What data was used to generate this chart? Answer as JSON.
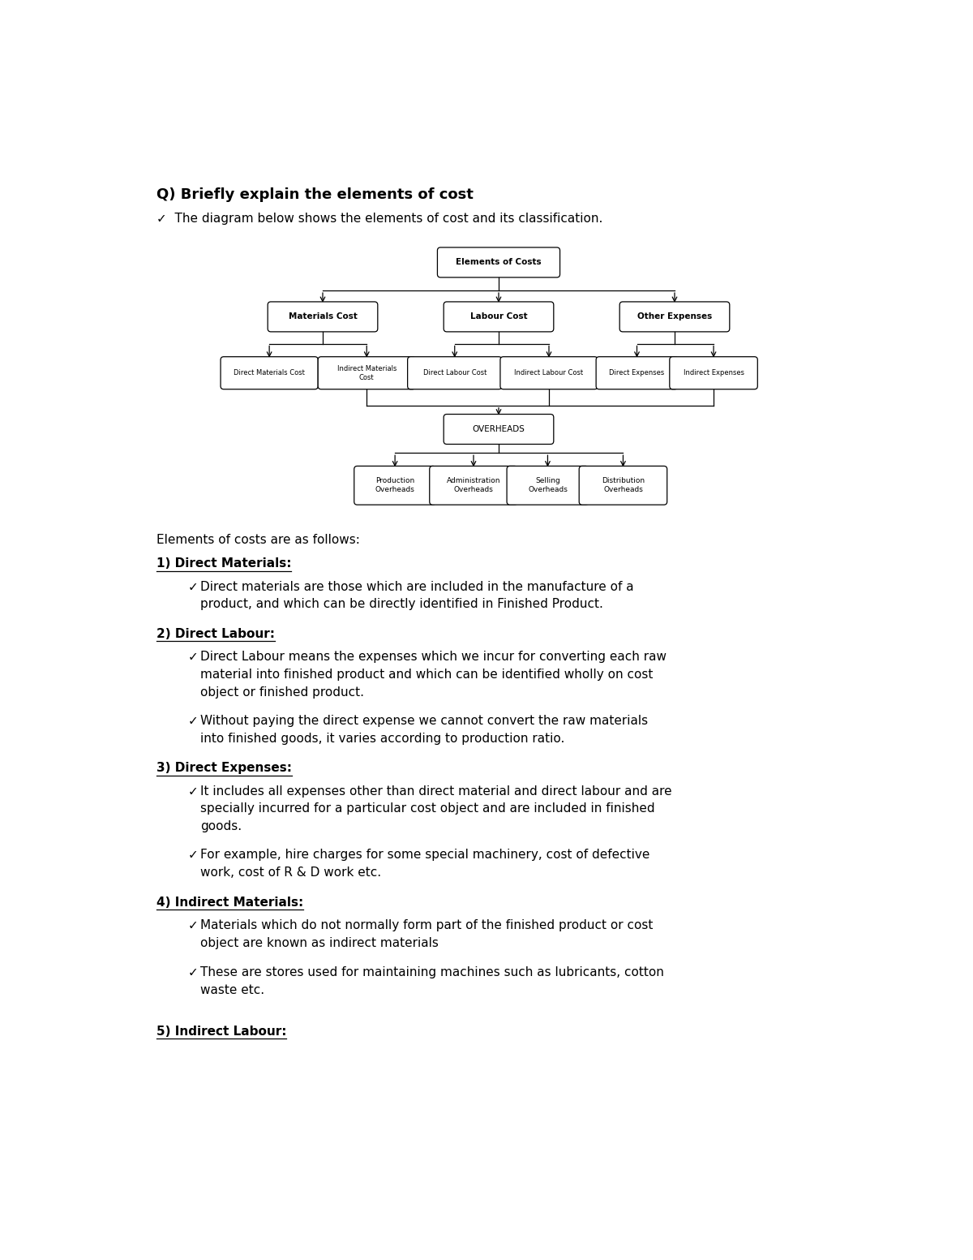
{
  "bg_color": "#ffffff",
  "title_q": "Q) Briefly explain the elements of cost",
  "subtitle": "✓  The diagram below shows the elements of cost and its classification.",
  "root_label": "Elements of Costs",
  "l1_labels": [
    "Materials Cost",
    "Labour Cost",
    "Other Expenses"
  ],
  "l2_mat": [
    "Direct Materials Cost",
    "Indirect Materials\nCost"
  ],
  "l2_lab": [
    "Direct Labour Cost",
    "Indirect Labour Cost"
  ],
  "l2_oth": [
    "Direct Expenses",
    "Indirect Expenses"
  ],
  "overhead_label": "OVERHEADS",
  "l3_labels": [
    "Production\nOverheads",
    "Administration\nOverheads",
    "Selling\nOverheads",
    "Distribution\nOverheads"
  ],
  "sections": [
    {
      "heading": "Elements of costs are as follows:",
      "bold": false,
      "underline": false,
      "bullets": []
    },
    {
      "heading": "1) Direct Materials:",
      "bold": true,
      "underline": true,
      "bullets": [
        "Direct materials are those which are included in the manufacture of a\nproduct, and which can be directly identified in Finished Product."
      ]
    },
    {
      "heading": "2) Direct Labour:",
      "bold": true,
      "underline": true,
      "bullets": [
        "Direct Labour means the expenses which we incur for converting each raw\nmaterial into finished product and which can be identified wholly on cost\nobject or finished product.",
        "Without paying the direct expense we cannot convert the raw materials\ninto finished goods, it varies according to production ratio."
      ]
    },
    {
      "heading": "3) Direct Expenses:",
      "bold": true,
      "underline": true,
      "bullets": [
        "It includes all expenses other than direct material and direct labour and are\nspecially incurred for a particular cost object and are included in finished\ngoods.",
        "For example, hire charges for some special machinery, cost of defective\nwork, cost of R & D work etc."
      ]
    },
    {
      "heading": "4) Indirect Materials:",
      "bold": true,
      "underline": true,
      "bullets": [
        "Materials which do not normally form part of the finished product or cost\nobject are known as indirect materials",
        "These are stores used for maintaining machines such as lubricants, cotton\nwaste etc."
      ]
    },
    {
      "heading": "",
      "bold": false,
      "underline": false,
      "bullets": []
    },
    {
      "heading": "5) Indirect Labour:",
      "bold": true,
      "underline": true,
      "bullets": []
    }
  ]
}
